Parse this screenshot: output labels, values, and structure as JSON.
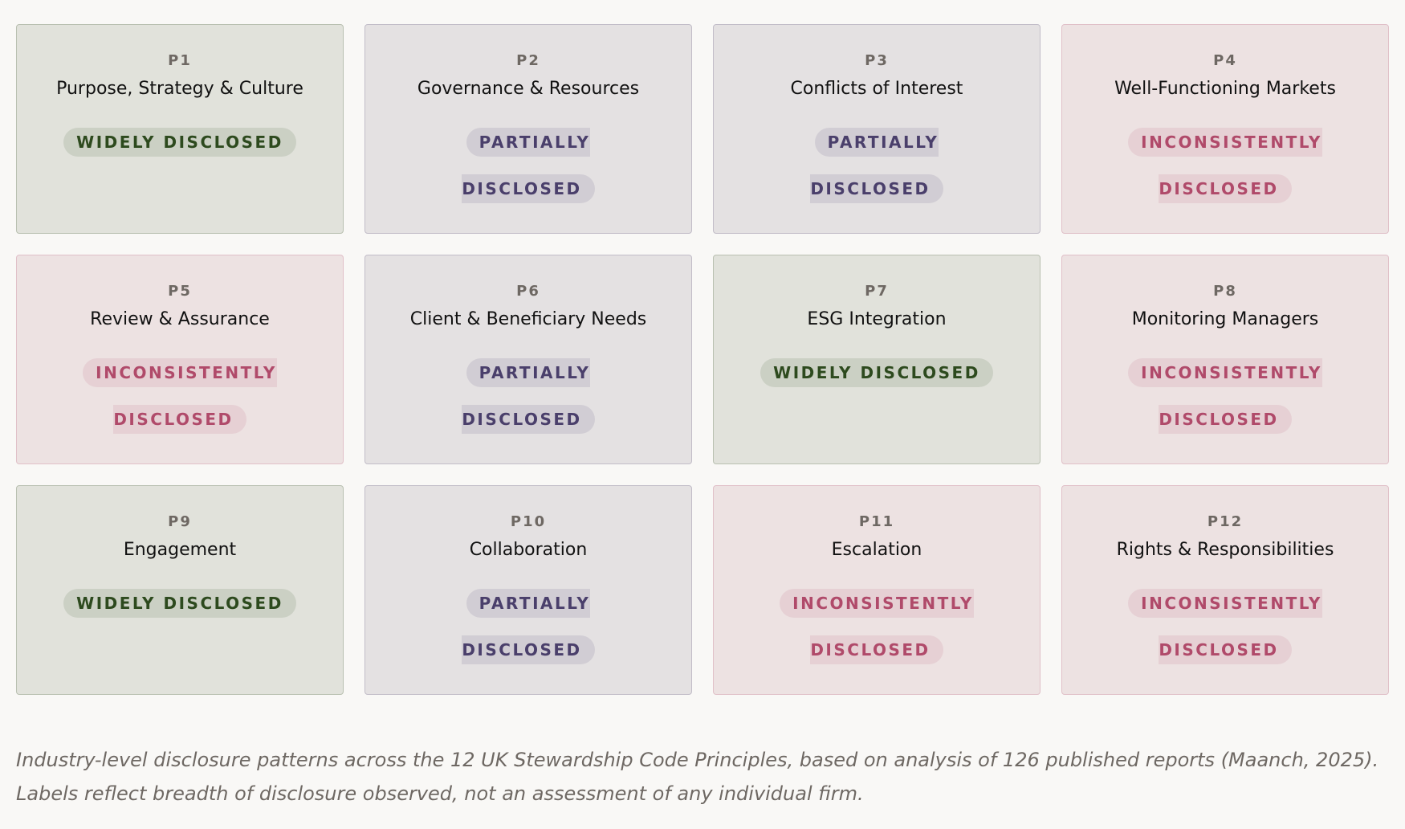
{
  "cards": [
    {
      "code": "P1",
      "title": "Purpose, Strategy & Culture",
      "status": "WIDELY DISCLOSED",
      "color": "#2d4a1e"
    },
    {
      "code": "P2",
      "title": "Governance & Resources",
      "status": "PARTIALLY DISCLOSED",
      "color": "#4a3f6b"
    },
    {
      "code": "P3",
      "title": "Conflicts of Interest",
      "status": "PARTIALLY DISCLOSED",
      "color": "#4a3f6b"
    },
    {
      "code": "P4",
      "title": "Well-Functioning Markets",
      "status": "INCONSISTENTLY DISCLOSED",
      "color": "#b04a6a"
    },
    {
      "code": "P5",
      "title": "Review & Assurance",
      "status": "INCONSISTENTLY DISCLOSED",
      "color": "#b04a6a"
    },
    {
      "code": "P6",
      "title": "Client & Beneficiary Needs",
      "status": "PARTIALLY DISCLOSED",
      "color": "#4a3f6b"
    },
    {
      "code": "P7",
      "title": "ESG Integration",
      "status": "WIDELY DISCLOSED",
      "color": "#2d4a1e"
    },
    {
      "code": "P8",
      "title": "Monitoring Managers",
      "status": "INCONSISTENTLY DISCLOSED",
      "color": "#b04a6a"
    },
    {
      "code": "P9",
      "title": "Engagement",
      "status": "WIDELY DISCLOSED",
      "color": "#2d4a1e"
    },
    {
      "code": "P10",
      "title": "Collaboration",
      "status": "PARTIALLY DISCLOSED",
      "color": "#4a3f6b"
    },
    {
      "code": "P11",
      "title": "Escalation",
      "status": "INCONSISTENTLY DISCLOSED",
      "color": "#b04a6a"
    },
    {
      "code": "P12",
      "title": "Rights & Responsibilities",
      "status": "INCONSISTENTLY DISCLOSED",
      "color": "#b04a6a"
    }
  ],
  "caption": "Industry-level disclosure patterns across the 12 UK Stewardship Code Principles, based on analysis of 126 published reports (Maanch, 2025). Labels reflect breadth of disclosure observed, not an assessment of any individual firm."
}
